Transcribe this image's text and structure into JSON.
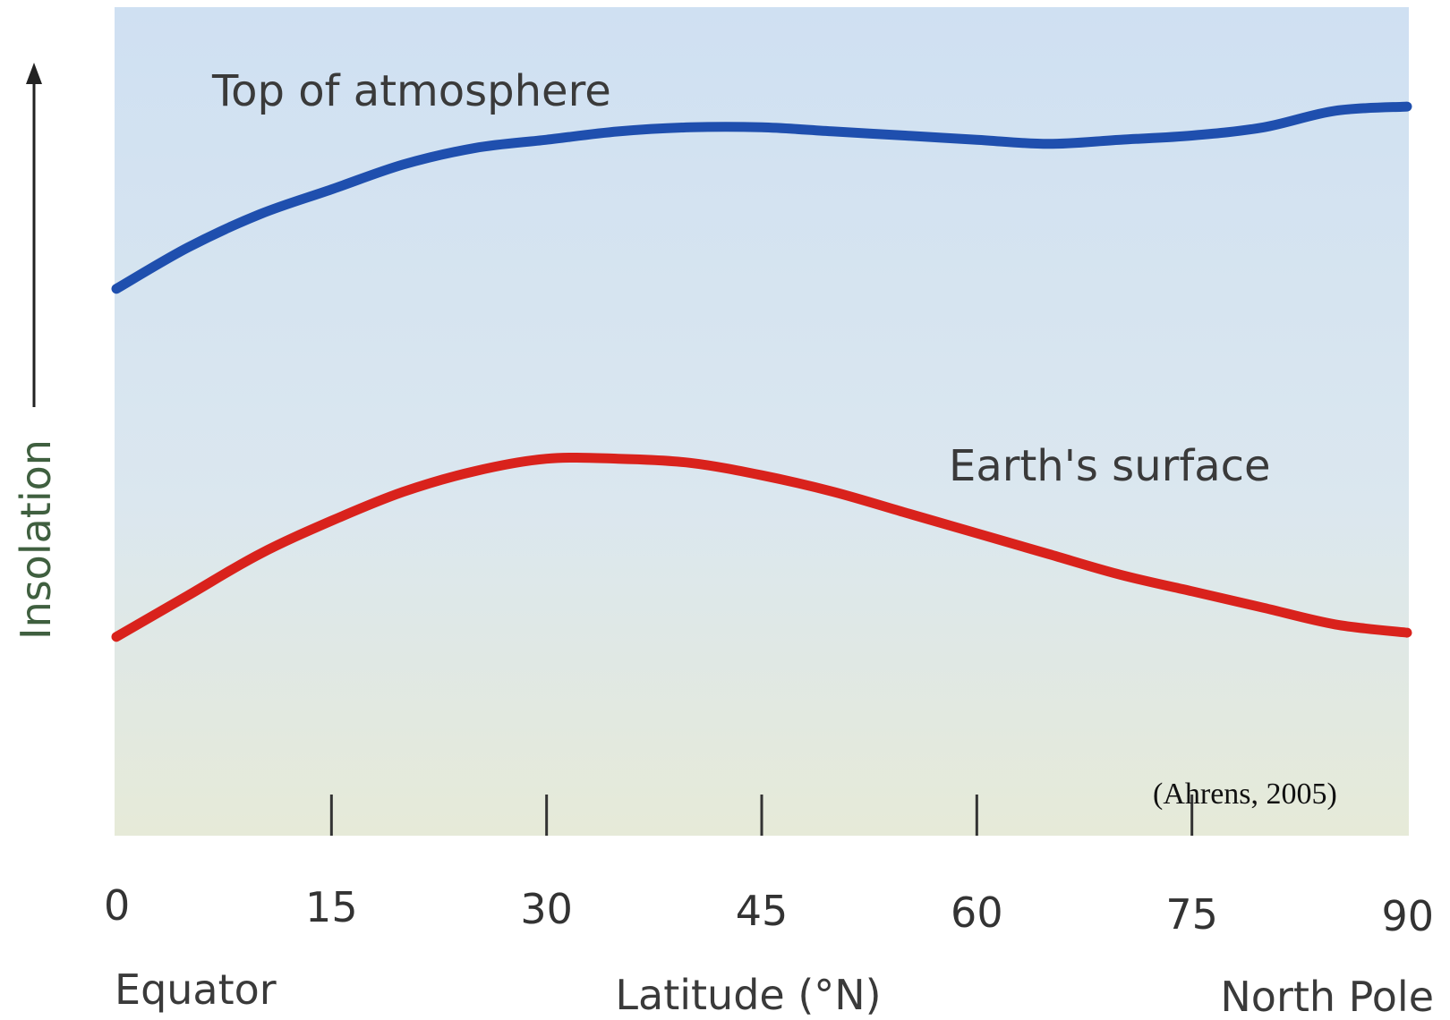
{
  "chart_data": {
    "type": "line",
    "title": "",
    "xlabel": "Latitude (°N)",
    "ylabel": "Insolation",
    "xlim": [
      0,
      90
    ],
    "x_ticks": [
      "0",
      "15",
      "30",
      "45",
      "60",
      "75",
      "90"
    ],
    "x_endpoint_labels": {
      "left": "Equator",
      "right": "North Pole"
    },
    "credit": "(Ahrens, 2005)",
    "grid": false,
    "y_ticks_shown": false,
    "series": [
      {
        "name": "Top of atmosphere",
        "color": "#1f4fae",
        "x": [
          0,
          5,
          10,
          15,
          20,
          25,
          30,
          35,
          40,
          45,
          50,
          55,
          60,
          65,
          70,
          75,
          80,
          85,
          90
        ],
        "y": [
          0.66,
          0.71,
          0.75,
          0.78,
          0.81,
          0.83,
          0.84,
          0.85,
          0.855,
          0.855,
          0.85,
          0.845,
          0.84,
          0.835,
          0.84,
          0.845,
          0.855,
          0.875,
          0.88
        ]
      },
      {
        "name": "Earth's surface",
        "color": "#d9221c",
        "x": [
          0,
          5,
          10,
          15,
          20,
          25,
          30,
          35,
          40,
          45,
          50,
          55,
          60,
          65,
          70,
          75,
          80,
          85,
          90
        ],
        "y": [
          0.24,
          0.29,
          0.34,
          0.38,
          0.415,
          0.44,
          0.455,
          0.455,
          0.45,
          0.435,
          0.415,
          0.39,
          0.365,
          0.34,
          0.315,
          0.295,
          0.275,
          0.255,
          0.245
        ]
      }
    ]
  }
}
